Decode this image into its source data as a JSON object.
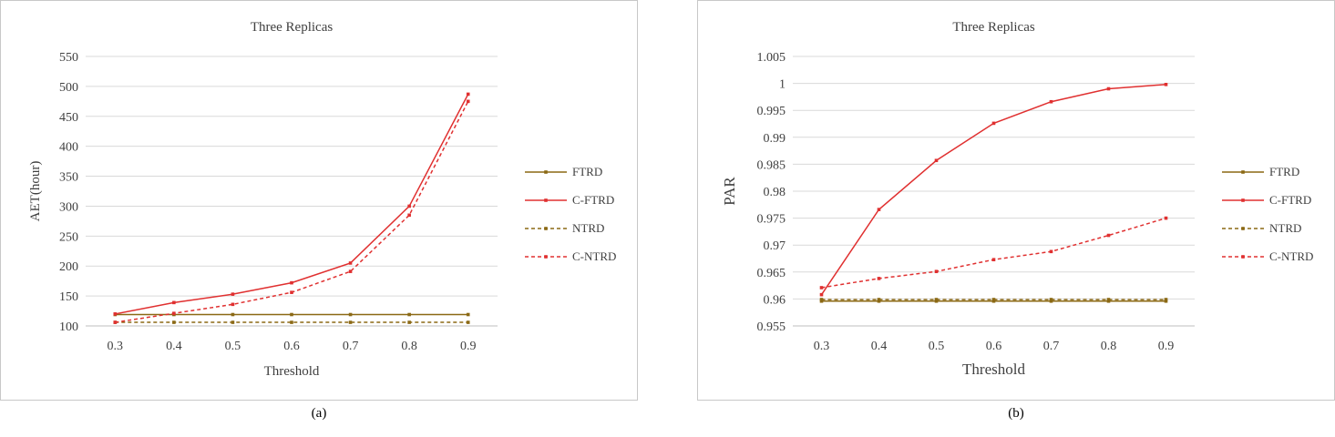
{
  "captions": [
    "(a)",
    "(b)"
  ],
  "chart_data": [
    {
      "type": "line",
      "title": "Three Replicas",
      "xlabel": "Threshold",
      "ylabel": "AET(hour)",
      "categories": [
        "0.3",
        "0.4",
        "0.5",
        "0.6",
        "0.7",
        "0.8",
        "0.9"
      ],
      "y_ticks": [
        "100",
        "150",
        "200",
        "250",
        "300",
        "350",
        "400",
        "450",
        "500",
        "550"
      ],
      "ylim": [
        100,
        550
      ],
      "grid": true,
      "legend_position": "right",
      "series": [
        {
          "name": "FTRD",
          "color": "#8B6914",
          "dashed": false,
          "values": [
            119,
            119,
            119,
            119,
            119,
            119,
            119
          ]
        },
        {
          "name": "C-FTRD",
          "color": "#E03030",
          "dashed": false,
          "values": [
            120,
            139,
            153,
            172,
            205,
            300,
            487
          ]
        },
        {
          "name": "NTRD",
          "color": "#8B6914",
          "dashed": true,
          "values": [
            106,
            106,
            106,
            106,
            106,
            106,
            106
          ]
        },
        {
          "name": "C-NTRD",
          "color": "#E03030",
          "dashed": true,
          "values": [
            106,
            121,
            136,
            156,
            191,
            285,
            475
          ]
        }
      ]
    },
    {
      "type": "line",
      "title": "Three Replicas",
      "xlabel": "Threshold",
      "ylabel": "PAR",
      "categories": [
        "0.3",
        "0.4",
        "0.5",
        "0.6",
        "0.7",
        "0.8",
        "0.9"
      ],
      "y_ticks": [
        "0.955",
        "0.96",
        "0.965",
        "0.97",
        "0.975",
        "0.98",
        "0.985",
        "0.99",
        "0.995",
        "1",
        "1.005"
      ],
      "ylim": [
        0.955,
        1.005
      ],
      "grid": true,
      "legend_position": "right",
      "series": [
        {
          "name": "FTRD",
          "color": "#8B6914",
          "dashed": false,
          "values": [
            0.9596,
            0.9596,
            0.9596,
            0.9596,
            0.9596,
            0.9596,
            0.9596
          ]
        },
        {
          "name": "C-FTRD",
          "color": "#E03030",
          "dashed": false,
          "values": [
            0.9608,
            0.9766,
            0.9857,
            0.9926,
            0.9966,
            0.999,
            0.9998
          ]
        },
        {
          "name": "NTRD",
          "color": "#8B6914",
          "dashed": true,
          "values": [
            0.9599,
            0.9599,
            0.9599,
            0.9599,
            0.9599,
            0.9599,
            0.9599
          ]
        },
        {
          "name": "C-NTRD",
          "color": "#E03030",
          "dashed": true,
          "values": [
            0.9621,
            0.9638,
            0.9651,
            0.9673,
            0.9688,
            0.9718,
            0.975
          ]
        }
      ]
    }
  ]
}
